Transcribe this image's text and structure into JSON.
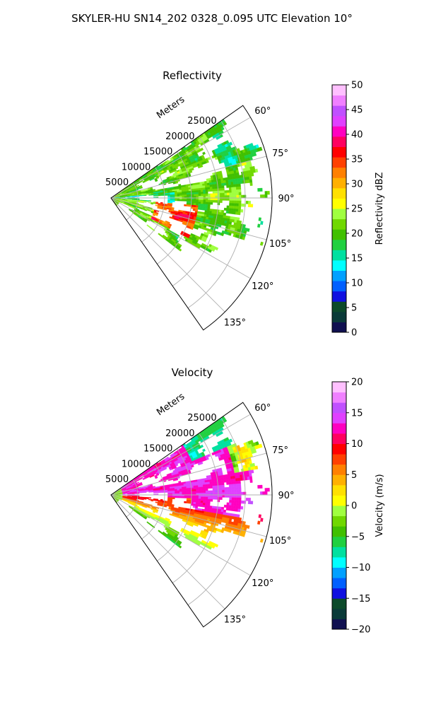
{
  "figure": {
    "suptitle": "SKYLER-HU  SN14_202  0328_0.095 UTC Elevation 10°"
  },
  "chart_data": [
    {
      "type": "heatmap",
      "subtype": "polar-sector (radar PPI)",
      "title": "Reflectivity",
      "radial_label": "Meters",
      "r_ticks": [
        5000,
        10000,
        15000,
        20000,
        25000
      ],
      "r_tick_labels": [
        "5000",
        "10000",
        "15000",
        "20000",
        "25000"
      ],
      "rmax": 30000,
      "theta_range_deg": [
        55,
        145
      ],
      "theta_ticks_deg": [
        60,
        75,
        90,
        105,
        120,
        135
      ],
      "theta_tick_labels": [
        "60°",
        "75°",
        "90°",
        "105°",
        "120°",
        "135°"
      ],
      "grid": true,
      "colorbar": {
        "label": "Reflectivity dBZ",
        "vmin": 0,
        "vmax": 50,
        "ticks": [
          0,
          5,
          10,
          15,
          20,
          25,
          30,
          35,
          40,
          45,
          50
        ],
        "tick_labels": [
          "0",
          "5",
          "10",
          "15",
          "20",
          "25",
          "30",
          "35",
          "40",
          "45",
          "50"
        ],
        "colors": [
          "#101050",
          "#0a3a38",
          "#0c4a2a",
          "#1010e0",
          "#0060ff",
          "#00a0ff",
          "#00ffff",
          "#00e0a0",
          "#20d040",
          "#40c000",
          "#70d800",
          "#a0ff40",
          "#ffff00",
          "#ffe000",
          "#ffb000",
          "#ff8000",
          "#ff4000",
          "#ff0000",
          "#ff0060",
          "#ff00c0",
          "#e040ff",
          "#c050ff",
          "#f080ff",
          "#ffc0ff"
        ]
      },
      "data_summary": "Echo field shown as a pixelated polar image; cell values only rendered as colour, not individually recoverable. Strongest echoes (~30-40 dBZ) near 95-115° at 8000-15000 m; widespread 15-25 dBZ elsewhere; gaps (no data) near 90° close to the radar.",
      "field": "reflectivity"
    },
    {
      "type": "heatmap",
      "subtype": "polar-sector (radar PPI)",
      "title": "Velocity",
      "radial_label": "Meters",
      "r_ticks": [
        5000,
        10000,
        15000,
        20000,
        25000
      ],
      "r_tick_labels": [
        "5000",
        "10000",
        "15000",
        "20000",
        "25000"
      ],
      "rmax": 30000,
      "theta_range_deg": [
        55,
        145
      ],
      "theta_ticks_deg": [
        60,
        75,
        90,
        105,
        120,
        135
      ],
      "theta_tick_labels": [
        "60°",
        "75°",
        "90°",
        "105°",
        "120°",
        "135°"
      ],
      "grid": true,
      "colorbar": {
        "label": "Velocity (m/s)",
        "vmin": -20,
        "vmax": 20,
        "ticks": [
          -20,
          -15,
          -10,
          -5,
          0,
          5,
          10,
          15,
          20
        ],
        "tick_labels": [
          "−20",
          "−15",
          "−10",
          "−5",
          "0",
          "5",
          "10",
          "15",
          "20"
        ],
        "colors": [
          "#101050",
          "#0a3a38",
          "#0c4a2a",
          "#1010e0",
          "#0060ff",
          "#00a0ff",
          "#00ffff",
          "#00e0a0",
          "#20d040",
          "#40c000",
          "#70d800",
          "#a0ff40",
          "#ffff00",
          "#ffe000",
          "#ffb000",
          "#ff8000",
          "#ff4000",
          "#ff0000",
          "#ff0060",
          "#ff00c0",
          "#e040ff",
          "#c050ff",
          "#f080ff",
          "#ffc0ff"
        ]
      },
      "data_summary": "Inbound/outbound velocity field: ~10-15 m/s (magenta/red) dominating 70-100°, ~0-5 m/s (yellow/orange) near 100-110°, negative ~-5 to -10 m/s (green/cyan) toward 60-70° and near the radar.",
      "field": "velocity"
    }
  ]
}
